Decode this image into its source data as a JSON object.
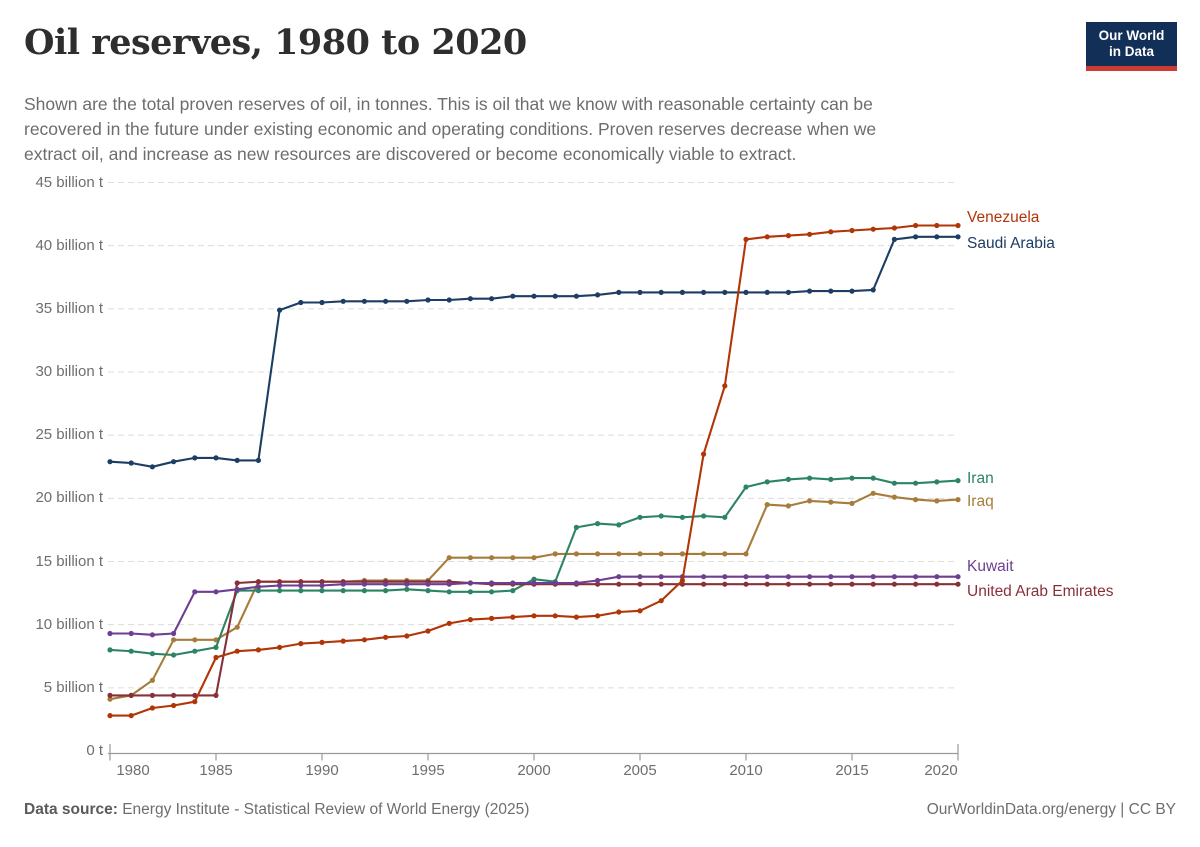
{
  "header": {
    "title": "Oil reserves, 1980 to 2020",
    "subtitle_lines": [
      "Shown are the total proven reserves of oil, in tonnes. This is oil that we know with reasonable certainty can be",
      "recovered in the future under existing economic and operating conditions. Proven reserves decrease when we",
      "extract oil, and increase as new resources are discovered or become economically viable to extract."
    ]
  },
  "logo": {
    "line1": "Our World",
    "line2": "in Data",
    "bg_color": "#112F57",
    "bar_color": "#CC3B33"
  },
  "chart_data": {
    "type": "line",
    "title": "Oil reserves, 1980 to 2020",
    "unit": "billion tonnes of oil (proven reserves)",
    "xlim": [
      1980,
      2020
    ],
    "ylim": [
      0,
      45
    ],
    "grid": "horizontal dashed gridlines, light gray",
    "legend_position": "labels at right end of each line",
    "x_ticks": [
      "1980",
      "1985",
      "1990",
      "1995",
      "2000",
      "2005",
      "2010",
      "2015",
      "2020"
    ],
    "y_ticks": [
      {
        "value": 0,
        "label": "0 t"
      },
      {
        "value": 5,
        "label": "5 billion t"
      },
      {
        "value": 10,
        "label": "10 billion t"
      },
      {
        "value": 15,
        "label": "15 billion t"
      },
      {
        "value": 20,
        "label": "20 billion t"
      },
      {
        "value": 25,
        "label": "25 billion t"
      },
      {
        "value": 30,
        "label": "30 billion t"
      },
      {
        "value": 35,
        "label": "35 billion t"
      },
      {
        "value": 40,
        "label": "40 billion t"
      },
      {
        "value": 45,
        "label": "45 billion t"
      }
    ],
    "x": [
      1980,
      1981,
      1982,
      1983,
      1984,
      1985,
      1986,
      1987,
      1988,
      1989,
      1990,
      1991,
      1992,
      1993,
      1994,
      1995,
      1996,
      1997,
      1998,
      1999,
      2000,
      2001,
      2002,
      2003,
      2004,
      2005,
      2006,
      2007,
      2008,
      2009,
      2010,
      2011,
      2012,
      2013,
      2014,
      2015,
      2016,
      2017,
      2018,
      2019,
      2020
    ],
    "series": [
      {
        "name": "Venezuela",
        "color": "#B13507",
        "values": [
          2.8,
          2.8,
          3.4,
          3.6,
          3.9,
          7.4,
          7.9,
          8.0,
          8.2,
          8.5,
          8.6,
          8.7,
          8.8,
          9.0,
          9.1,
          9.5,
          10.1,
          10.4,
          10.5,
          10.6,
          10.7,
          10.7,
          10.6,
          10.7,
          11.0,
          11.1,
          11.9,
          13.5,
          23.5,
          28.9,
          40.5,
          40.7,
          40.8,
          40.9,
          41.1,
          41.2,
          41.3,
          41.4,
          41.6,
          41.6,
          41.6
        ]
      },
      {
        "name": "Saudi Arabia",
        "color": "#1D3D63",
        "values": [
          22.9,
          22.8,
          22.5,
          22.9,
          23.2,
          23.2,
          23.0,
          23.0,
          34.9,
          35.5,
          35.5,
          35.6,
          35.6,
          35.6,
          35.6,
          35.7,
          35.7,
          35.8,
          35.8,
          36.0,
          36.0,
          36.0,
          36.0,
          36.1,
          36.3,
          36.3,
          36.3,
          36.3,
          36.3,
          36.3,
          36.3,
          36.3,
          36.3,
          36.4,
          36.4,
          36.4,
          36.5,
          40.5,
          40.7,
          40.7,
          40.7
        ]
      },
      {
        "name": "Iran",
        "color": "#2C8465",
        "values": [
          8.0,
          7.9,
          7.7,
          7.6,
          7.9,
          8.2,
          12.7,
          12.7,
          12.7,
          12.7,
          12.7,
          12.7,
          12.7,
          12.7,
          12.8,
          12.7,
          12.6,
          12.6,
          12.6,
          12.7,
          13.6,
          13.4,
          17.7,
          18.0,
          17.9,
          18.5,
          18.6,
          18.5,
          18.6,
          18.5,
          20.9,
          21.3,
          21.5,
          21.6,
          21.5,
          21.6,
          21.6,
          21.2,
          21.2,
          21.3,
          21.4
        ]
      },
      {
        "name": "Iraq",
        "color": "#A67C3B",
        "values": [
          4.1,
          4.4,
          5.6,
          8.8,
          8.8,
          8.8,
          9.8,
          13.4,
          13.4,
          13.4,
          13.4,
          13.4,
          13.5,
          13.5,
          13.5,
          13.5,
          15.3,
          15.3,
          15.3,
          15.3,
          15.3,
          15.6,
          15.6,
          15.6,
          15.6,
          15.6,
          15.6,
          15.6,
          15.6,
          15.6,
          15.6,
          19.5,
          19.4,
          19.8,
          19.7,
          19.6,
          20.4,
          20.1,
          19.9,
          19.8,
          19.9
        ]
      },
      {
        "name": "Kuwait",
        "color": "#6D3E91",
        "values": [
          9.3,
          9.3,
          9.2,
          9.3,
          12.6,
          12.6,
          12.8,
          13.0,
          13.1,
          13.1,
          13.1,
          13.2,
          13.2,
          13.2,
          13.2,
          13.2,
          13.2,
          13.3,
          13.3,
          13.3,
          13.3,
          13.3,
          13.3,
          13.5,
          13.8,
          13.8,
          13.8,
          13.8,
          13.8,
          13.8,
          13.8,
          13.8,
          13.8,
          13.8,
          13.8,
          13.8,
          13.8,
          13.8,
          13.8,
          13.8,
          13.8
        ]
      },
      {
        "name": "United Arab Emirates",
        "color": "#883039",
        "values": [
          4.4,
          4.4,
          4.4,
          4.4,
          4.4,
          4.4,
          13.3,
          13.4,
          13.4,
          13.4,
          13.4,
          13.4,
          13.4,
          13.4,
          13.4,
          13.4,
          13.4,
          13.3,
          13.2,
          13.2,
          13.2,
          13.2,
          13.2,
          13.2,
          13.2,
          13.2,
          13.2,
          13.2,
          13.2,
          13.2,
          13.2,
          13.2,
          13.2,
          13.2,
          13.2,
          13.2,
          13.2,
          13.2,
          13.2,
          13.2,
          13.2
        ]
      }
    ]
  },
  "footer": {
    "source_label": "Data source:",
    "source_text": " Energy Institute - Statistical Review of World Energy (2025)",
    "right_text": "OurWorldinData.org/energy | CC BY"
  }
}
